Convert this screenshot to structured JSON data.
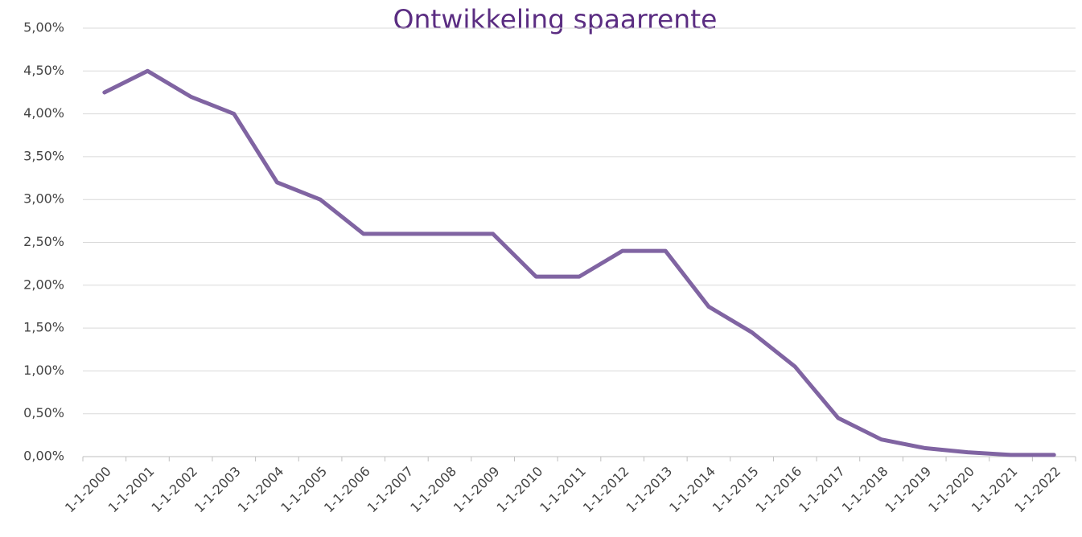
{
  "chart_data": {
    "type": "line",
    "title": "Ontwikkeling spaarrente",
    "categories": [
      "1-1-2000",
      "1-1-2001",
      "1-1-2002",
      "1-1-2003",
      "1-1-2004",
      "1-1-2005",
      "1-1-2006",
      "1-1-2007",
      "1-1-2008",
      "1-1-2009",
      "1-1-2010",
      "1-1-2011",
      "1-1-2012",
      "1-1-2013",
      "1-1-2014",
      "1-1-2015",
      "1-1-2016",
      "1-1-2017",
      "1-1-2018",
      "1-1-2019",
      "1-1-2020",
      "1-1-2021",
      "1-1-2022"
    ],
    "values": [
      4.25,
      4.5,
      4.2,
      4.0,
      3.2,
      3.0,
      2.6,
      2.6,
      2.6,
      2.6,
      2.1,
      2.1,
      2.4,
      2.4,
      1.75,
      1.45,
      1.05,
      0.45,
      0.2,
      0.1,
      0.05,
      0.02,
      0.02
    ],
    "color": "#8064a2",
    "ylim": [
      0,
      5
    ],
    "yticks": [
      {
        "value": 0,
        "label": "0,00%"
      },
      {
        "value": 0.5,
        "label": "0,50%"
      },
      {
        "value": 1,
        "label": "1,00%"
      },
      {
        "value": 1.5,
        "label": "1,50%"
      },
      {
        "value": 2,
        "label": "2,00%"
      },
      {
        "value": 2.5,
        "label": "2,50%"
      },
      {
        "value": 3,
        "label": "3,00%"
      },
      {
        "value": 3.5,
        "label": "3,50%"
      },
      {
        "value": 4,
        "label": "4,00%"
      },
      {
        "value": 4.5,
        "label": "4,50%"
      },
      {
        "value": 5,
        "label": "5,00%"
      }
    ],
    "grid": true
  }
}
